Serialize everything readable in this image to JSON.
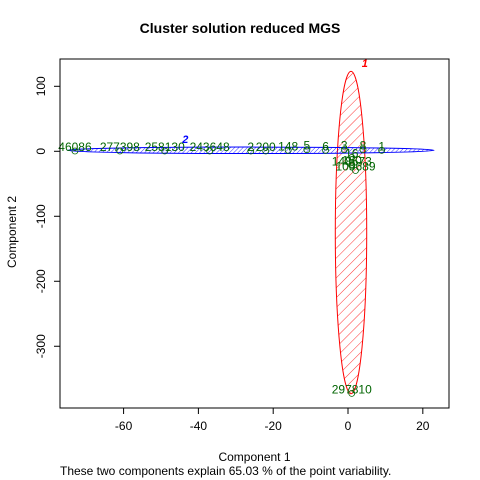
{
  "chart_data": {
    "type": "scatter",
    "title": "Cluster solution reduced MGS",
    "xlabel": "Component 1",
    "ylabel": "Component 2",
    "subtitle": "These two components explain 65.03 % of the point variability.",
    "xlim": [
      -77,
      27
    ],
    "ylim": [
      -395,
      142
    ],
    "xticks": [
      -60,
      -40,
      -20,
      0,
      20
    ],
    "yticks": [
      100,
      0,
      -100,
      -200,
      -300
    ],
    "grid": false,
    "clusters": [
      {
        "label": "1",
        "color": "#ff0000",
        "center_x": 0.8,
        "center_y": -125,
        "radius_x": 4.2,
        "radius_y": 248,
        "label_x": 4.5,
        "label_y": 130
      },
      {
        "label": "2",
        "color": "#0000ff",
        "center_x": -26,
        "center_y": 1.5,
        "radius_x": 49,
        "radius_y": 5,
        "label_x": -43.5,
        "label_y": 13
      }
    ],
    "points": [
      {
        "label": "46086",
        "x": -73,
        "y": 2,
        "color": "#006400"
      },
      {
        "label": "277398",
        "x": -61,
        "y": 2,
        "color": "#006400"
      },
      {
        "label": "258130",
        "x": -49,
        "y": 2,
        "color": "#006400"
      },
      {
        "label": "243648",
        "x": -37,
        "y": 2,
        "color": "#006400"
      },
      {
        "label": "2",
        "x": -26,
        "y": 2,
        "color": "#006400"
      },
      {
        "label": "200",
        "x": -22,
        "y": 2,
        "color": "#006400"
      },
      {
        "label": "148",
        "x": -16,
        "y": 3,
        "color": "#006400"
      },
      {
        "label": "5",
        "x": -11,
        "y": 4,
        "color": "#006400"
      },
      {
        "label": "6",
        "x": -6,
        "y": 3,
        "color": "#006400"
      },
      {
        "label": "3",
        "x": -1,
        "y": 4,
        "color": "#006400"
      },
      {
        "label": "8",
        "x": 4,
        "y": 4,
        "color": "#006400"
      },
      {
        "label": "1",
        "x": 9,
        "y": 3,
        "color": "#006400"
      },
      {
        "label": "16",
        "x": 1,
        "y": -8,
        "color": "#006400"
      },
      {
        "label": "148573",
        "x": 1,
        "y": -20,
        "color": "#006400"
      },
      {
        "label": "160",
        "x": 1,
        "y": -19,
        "color": "#006400"
      },
      {
        "label": "105689",
        "x": 2,
        "y": -28,
        "color": "#006400"
      },
      {
        "label": "297810",
        "x": 1,
        "y": -371,
        "color": "#006400"
      }
    ]
  }
}
